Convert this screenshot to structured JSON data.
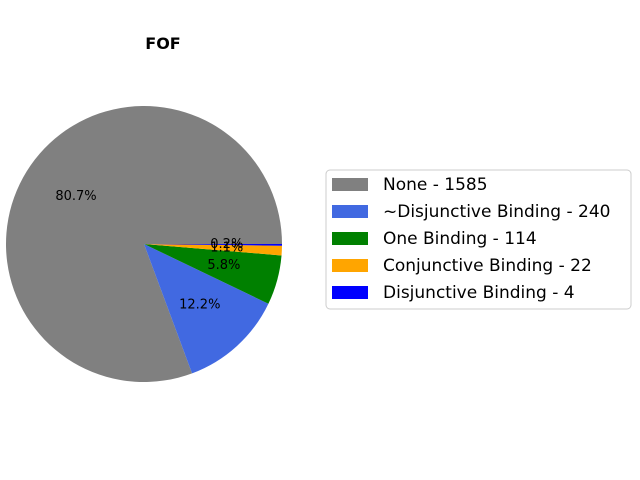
{
  "chart_data": {
    "type": "pie",
    "title": "FOF",
    "slices": [
      {
        "label": "None - 1585",
        "value": 1585,
        "pct_label": "80.7%",
        "color": "#808080"
      },
      {
        "label": "~Disjunctive Binding - 240",
        "value": 240,
        "pct_label": "12.2%",
        "color": "#4169E1"
      },
      {
        "label": "One Binding - 114",
        "value": 114,
        "pct_label": "5.8%",
        "color": "#008000"
      },
      {
        "label": "Conjunctive Binding - 22",
        "value": 22,
        "pct_label": "1.1%",
        "color": "#FFA500"
      },
      {
        "label": "Disjunctive Binding - 4",
        "value": 4,
        "pct_label": "0.2%",
        "color": "#0000FF"
      }
    ],
    "legend_position": "right"
  }
}
